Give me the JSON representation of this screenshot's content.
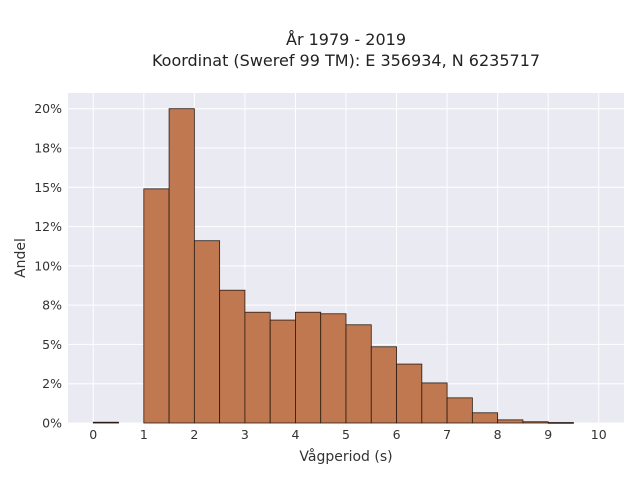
{
  "chart_data": {
    "type": "bar",
    "title_line1": "År 1979 - 2019",
    "title_line2": "Koordinat (Sweref 99 TM): E 356934, N 6235717",
    "xlabel": "Vågperiod (s)",
    "ylabel": "Andel",
    "xlim": [
      -0.5,
      10.5
    ],
    "ylim": [
      0,
      0.21
    ],
    "bin_width": 0.5,
    "bin_starts": [
      0,
      0.5,
      1.0,
      1.5,
      2.0,
      2.5,
      3.0,
      3.5,
      4.0,
      4.5,
      5.0,
      5.5,
      6.0,
      6.5,
      7.0,
      7.5,
      8.0,
      8.5,
      9.0,
      9.5
    ],
    "values": [
      0.0005,
      0,
      0.149,
      0.2,
      0.116,
      0.0845,
      0.0705,
      0.0655,
      0.0705,
      0.0695,
      0.0625,
      0.0485,
      0.0375,
      0.0255,
      0.016,
      0.0065,
      0.002,
      0.0008,
      0.0003,
      0
    ],
    "x_ticks": [
      0,
      1,
      2,
      3,
      4,
      5,
      6,
      7,
      8,
      9,
      10
    ],
    "x_tick_labels": [
      "0",
      "1",
      "2",
      "3",
      "4",
      "5",
      "6",
      "7",
      "8",
      "9",
      "10"
    ],
    "y_ticks": [
      0,
      0.025,
      0.05,
      0.075,
      0.1,
      0.125,
      0.15,
      0.175,
      0.2
    ],
    "y_tick_labels": [
      "0%",
      "2%",
      "5%",
      "8%",
      "10%",
      "12%",
      "15%",
      "18%",
      "20%"
    ],
    "grid": true,
    "colors": {
      "bar_fill": "#c07850",
      "bar_edge": "#2a1a10",
      "plot_bg": "#eaeaf2",
      "grid": "#ffffff"
    }
  }
}
